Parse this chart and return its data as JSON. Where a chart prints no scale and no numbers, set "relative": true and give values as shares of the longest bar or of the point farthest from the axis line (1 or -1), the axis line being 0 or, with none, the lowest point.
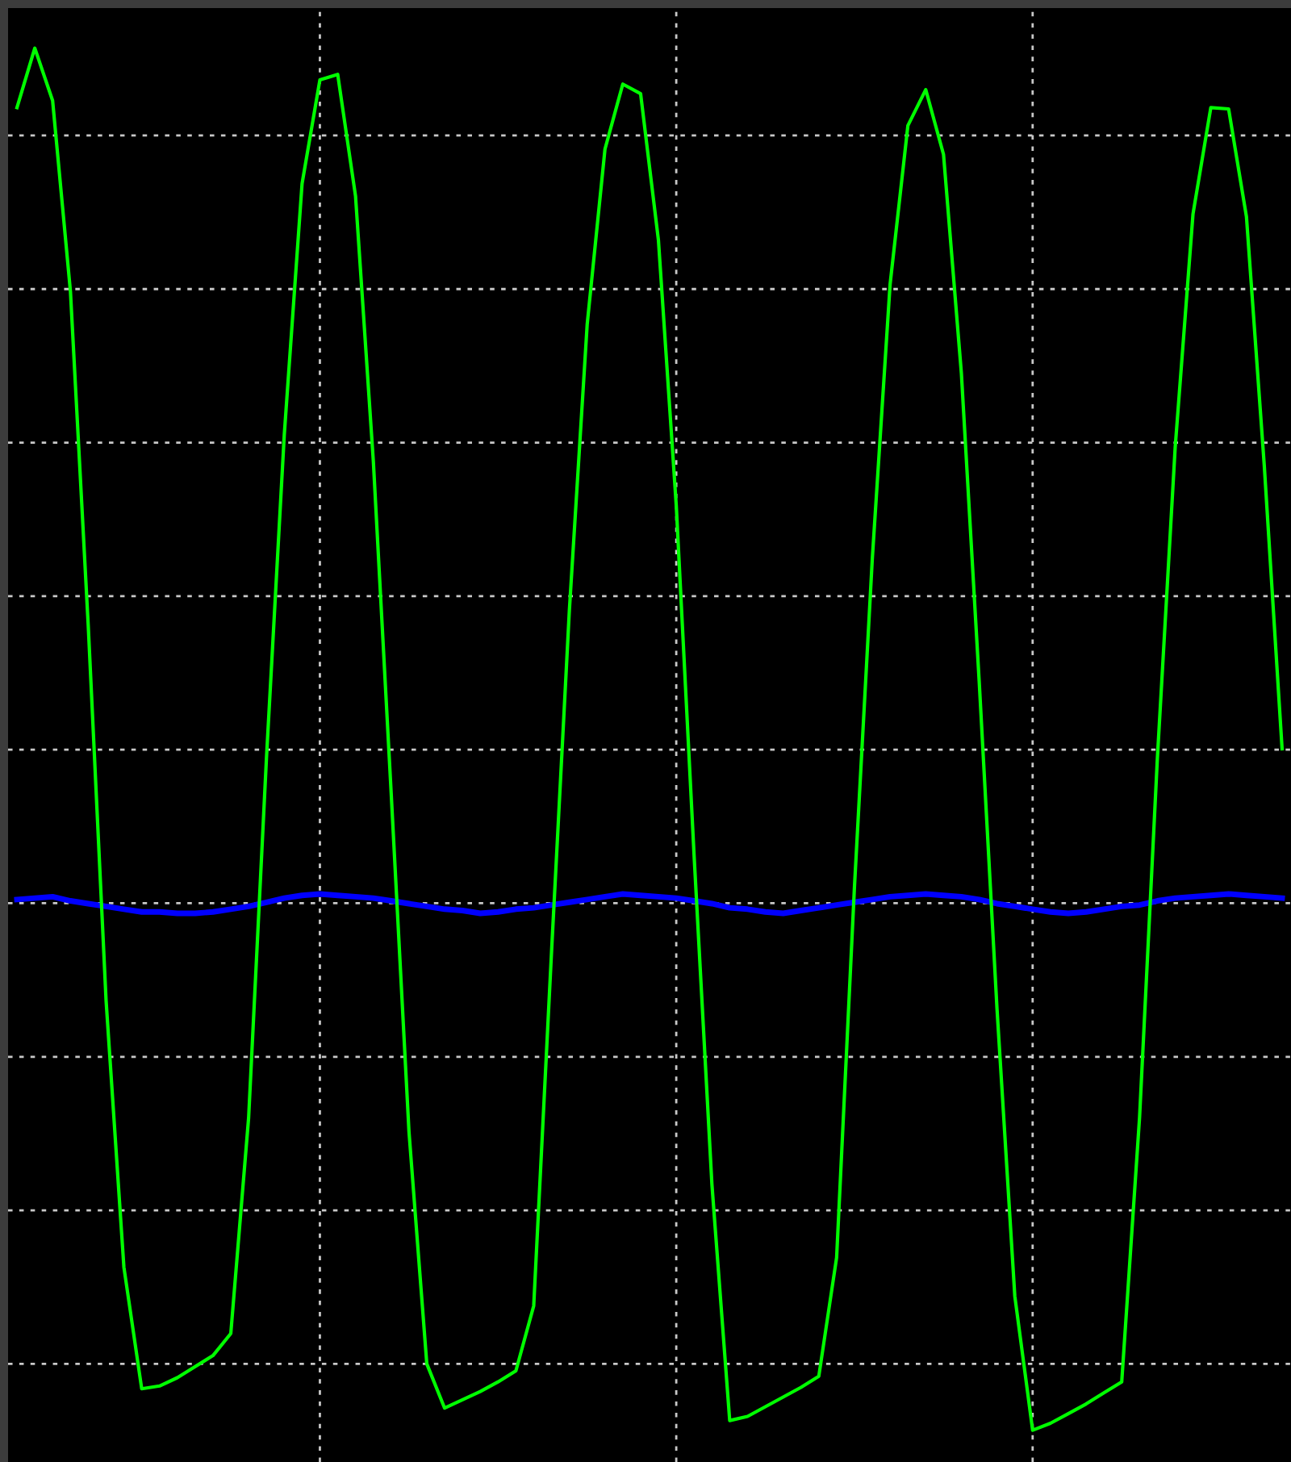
{
  "chart_data": {
    "type": "line",
    "relative": true,
    "grid": true,
    "line_style": "solid",
    "categories": [
      null,
      null,
      null,
      null,
      null,
      null,
      null,
      null,
      null,
      null,
      null,
      null,
      null,
      null,
      null,
      null,
      null,
      null,
      null,
      null,
      null,
      null,
      null,
      null,
      null,
      null,
      null,
      null,
      null,
      null,
      null,
      null,
      null,
      null,
      null,
      null,
      null,
      null,
      null,
      null,
      null,
      null,
      null,
      null,
      null,
      null,
      null,
      null,
      null,
      null,
      null,
      null,
      null,
      null,
      null,
      null,
      null,
      null,
      null,
      null,
      null,
      null,
      null,
      null,
      null,
      null,
      null,
      null,
      null,
      null,
      null,
      null
    ],
    "series": [
      {
        "color": "#00ff00",
        "values": [
          0.957,
          1.0,
          0.962,
          0.824,
          0.582,
          0.311,
          0.118,
          0.03,
          0.032,
          0.038,
          0.046,
          0.054,
          0.07,
          0.226,
          0.486,
          0.72,
          0.902,
          0.977,
          0.981,
          0.893,
          0.701,
          0.461,
          0.216,
          0.048,
          0.016,
          0.022,
          0.028,
          0.035,
          0.043,
          0.09,
          0.346,
          0.593,
          0.8,
          0.927,
          0.974,
          0.967,
          0.861,
          0.669,
          0.416,
          0.178,
          0.007,
          0.01,
          0.017,
          0.024,
          0.031,
          0.039,
          0.125,
          0.393,
          0.63,
          0.829,
          0.944,
          0.97,
          0.923,
          0.765,
          0.542,
          0.305,
          0.097,
          0.0,
          0.005,
          0.012,
          0.019,
          0.027,
          0.035,
          0.226,
          0.486,
          0.711,
          0.88,
          0.957,
          0.956,
          0.878,
          0.698,
          0.493
        ]
      },
      {
        "color": "#0000ff",
        "values": [
          0.384,
          0.385,
          0.386,
          0.383,
          0.381,
          0.379,
          0.377,
          0.375,
          0.375,
          0.374,
          0.374,
          0.375,
          0.377,
          0.379,
          0.382,
          0.385,
          0.387,
          0.388,
          0.387,
          0.386,
          0.385,
          0.383,
          0.381,
          0.379,
          0.377,
          0.376,
          0.374,
          0.375,
          0.377,
          0.378,
          0.38,
          0.382,
          0.384,
          0.386,
          0.388,
          0.387,
          0.386,
          0.385,
          0.383,
          0.381,
          0.378,
          0.377,
          0.375,
          0.374,
          0.376,
          0.378,
          0.38,
          0.382,
          0.384,
          0.386,
          0.387,
          0.388,
          0.387,
          0.386,
          0.384,
          0.381,
          0.379,
          0.377,
          0.375,
          0.374,
          0.375,
          0.377,
          0.379,
          0.38,
          0.383,
          0.385,
          0.386,
          0.387,
          0.388,
          0.387,
          0.386,
          0.385
        ]
      }
    ]
  }
}
